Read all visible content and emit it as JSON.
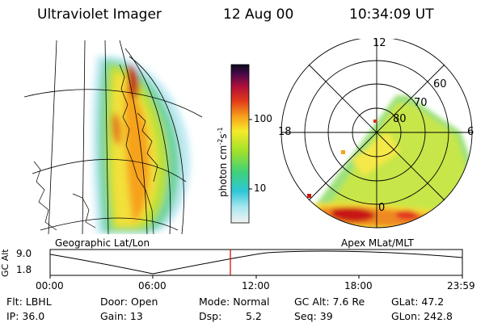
{
  "header": {
    "title": "Ultraviolet Imager",
    "date": "12 Aug 00",
    "time": "10:34:09 UT"
  },
  "colorbar": {
    "label": "photon cm",
    "exp1": "-2",
    "unit2": "s",
    "exp2": "-1",
    "ticks": [
      "100",
      "10"
    ]
  },
  "polar": {
    "top": "12",
    "left": "18",
    "right": "6",
    "bottom": "0",
    "rings": [
      "60",
      "70",
      "80"
    ]
  },
  "map_labels": {
    "left": "Geographic Lat/Lon",
    "right": "Apex MLat/MLT"
  },
  "timeline": {
    "ylabel": "GC Alt",
    "y_top": "9.0",
    "y_bottom": "1.8",
    "ticks": [
      "00:00",
      "06:00",
      "12:00",
      "18:00",
      "23:59"
    ],
    "marker_time": "10:34"
  },
  "info": {
    "flt": "Flt: LBHL",
    "ip": "IP: 36.0",
    "door": "Door: Open",
    "gain": "Gain: 13",
    "mode": "Mode: Normal",
    "dsp_label": "Dsp:",
    "dsp_value": "5.2",
    "gc_alt": "GC Alt: 7.6 Re",
    "seq": "Seq: 39",
    "glat": "GLat: 47.2",
    "glon": "GLon: 242.8"
  },
  "colors": {
    "marker": "#cc0000",
    "frame": "#000000"
  }
}
